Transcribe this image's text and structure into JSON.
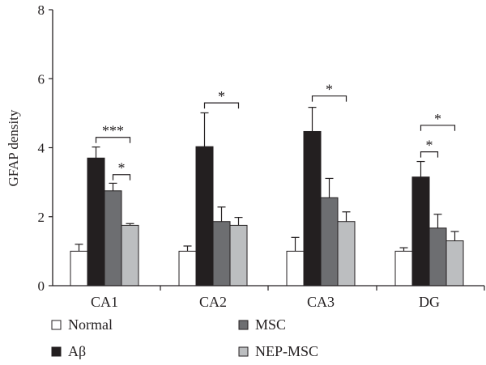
{
  "chart_data": {
    "type": "bar",
    "title": "",
    "xlabel": "",
    "ylabel": "GFAP density",
    "ylim": [
      0,
      8
    ],
    "yticks": [
      "0",
      "2",
      "4",
      "6",
      "8"
    ],
    "grid": false,
    "legend_position": "bottom",
    "categories": [
      "CA1",
      "CA2",
      "CA3",
      "DG"
    ],
    "series": [
      {
        "name": "Normal",
        "color": "#ffffff",
        "values": [
          1.0,
          1.0,
          1.0,
          1.0
        ],
        "errors": [
          0.2,
          0.15,
          0.4,
          0.1
        ]
      },
      {
        "name": "Aβ",
        "color": "#231f20",
        "values": [
          3.7,
          4.03,
          4.47,
          3.15
        ],
        "errors": [
          0.32,
          0.98,
          0.7,
          0.45
        ]
      },
      {
        "name": "MSC",
        "color": "#6d6e71",
        "values": [
          2.75,
          1.86,
          2.55,
          1.67
        ],
        "errors": [
          0.22,
          0.42,
          0.56,
          0.4
        ]
      },
      {
        "name": "NEP-MSC",
        "color": "#bcbec0",
        "values": [
          1.75,
          1.75,
          1.86,
          1.3
        ],
        "errors": [
          0.05,
          0.23,
          0.28,
          0.27
        ]
      }
    ],
    "significance": [
      {
        "category": "CA1",
        "from": "Aβ",
        "to": "NEP-MSC",
        "label": "***",
        "y": 4.3
      },
      {
        "category": "CA1",
        "from": "MSC",
        "to": "NEP-MSC",
        "label": "*",
        "y": 3.22
      },
      {
        "category": "CA2",
        "from": "Aβ",
        "to": "NEP-MSC",
        "label": "*",
        "y": 5.3
      },
      {
        "category": "CA3",
        "from": "Aβ",
        "to": "NEP-MSC",
        "label": "*",
        "y": 5.5
      },
      {
        "category": "DG",
        "from": "Aβ",
        "to": "NEP-MSC",
        "label": "*",
        "y": 4.65
      },
      {
        "category": "DG",
        "from": "Aβ",
        "to": "MSC",
        "label": "*",
        "y": 3.88
      }
    ]
  }
}
